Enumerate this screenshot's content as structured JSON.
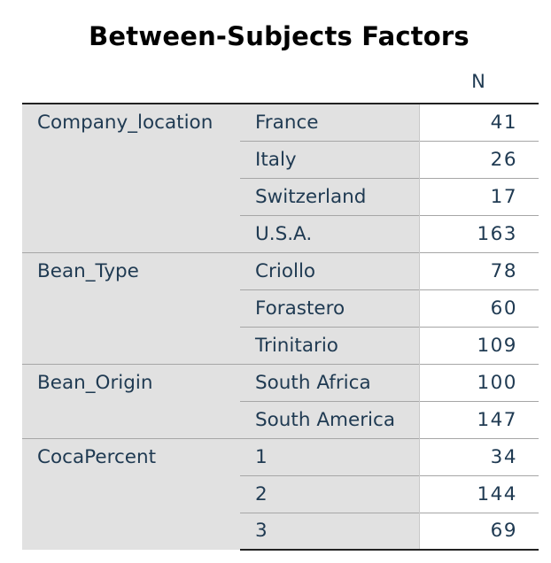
{
  "title": "Between-Subjects Factors",
  "column_header": "N",
  "factors": [
    {
      "name": "Company_location",
      "levels": [
        {
          "label": "France",
          "n": "41"
        },
        {
          "label": "Italy",
          "n": "26"
        },
        {
          "label": "Switzerland",
          "n": "17"
        },
        {
          "label": "U.S.A.",
          "n": "163"
        }
      ]
    },
    {
      "name": "Bean_Type",
      "levels": [
        {
          "label": "Criollo",
          "n": "78"
        },
        {
          "label": "Forastero",
          "n": "60"
        },
        {
          "label": "Trinitario",
          "n": "109"
        }
      ]
    },
    {
      "name": "Bean_Origin",
      "levels": [
        {
          "label": "South Africa",
          "n": "100"
        },
        {
          "label": "South America",
          "n": "147"
        }
      ]
    },
    {
      "name": "CocaPercent",
      "levels": [
        {
          "label": "1",
          "n": "34"
        },
        {
          "label": "2",
          "n": "144"
        },
        {
          "label": "3",
          "n": "69"
        }
      ]
    }
  ]
}
